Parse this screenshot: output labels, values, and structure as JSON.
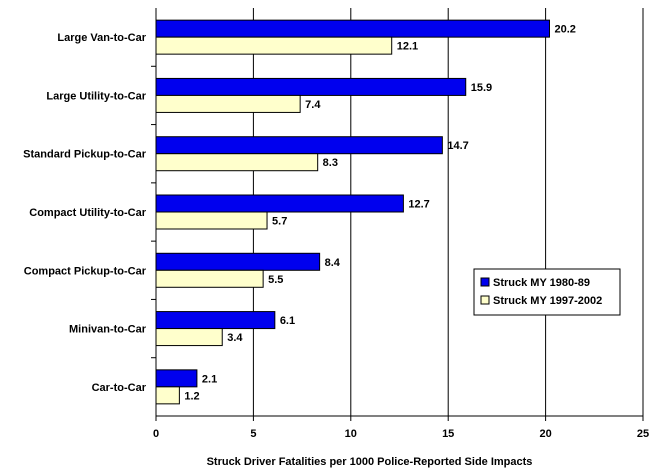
{
  "chart_data": {
    "type": "bar",
    "orientation": "horizontal",
    "categories": [
      "Large Van-to-Car",
      "Large Utility-to-Car",
      "Standard Pickup-to-Car",
      "Compact Utility-to-Car",
      "Compact Pickup-to-Car",
      "Minivan-to-Car",
      "Car-to-Car"
    ],
    "series": [
      {
        "name": "Struck MY 1980-89",
        "color": "#0000ee",
        "values": [
          20.2,
          15.9,
          14.7,
          12.7,
          8.4,
          6.1,
          2.1
        ]
      },
      {
        "name": "Struck MY 1997-2002",
        "color": "#ffffcc",
        "values": [
          12.1,
          7.4,
          8.3,
          5.7,
          5.5,
          3.4,
          1.2
        ]
      }
    ],
    "xlabel": "Struck Driver Fatalities per 1000 Police-Reported Side Impacts",
    "ylabel": "",
    "xlim": [
      0,
      25
    ],
    "xticks": [
      0,
      5,
      10,
      15,
      20,
      25
    ],
    "grid": "vertical",
    "legend_position": "right-middle"
  }
}
